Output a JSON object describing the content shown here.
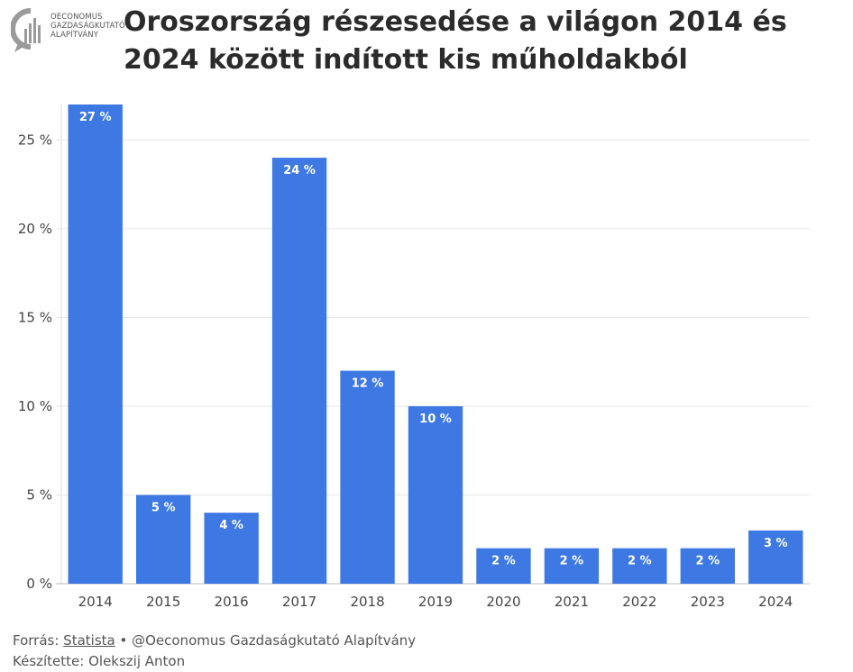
{
  "header": {
    "logo_lines": [
      "OECONOMUS",
      "GAZDASÁGKUTATÓ",
      "ALAPÍTVÁNY"
    ],
    "title_line1": "Oroszország részesedése a világon 2014 és",
    "title_line2": "2024 között indított kis műholdakból"
  },
  "chart_data": {
    "type": "bar",
    "title": "Oroszország részesedése a világon 2014 és 2024 között indított kis műholdakból",
    "xlabel": "",
    "ylabel": "",
    "categories": [
      "2014",
      "2015",
      "2016",
      "2017",
      "2018",
      "2019",
      "2020",
      "2021",
      "2022",
      "2023",
      "2024"
    ],
    "values": [
      27,
      5,
      4,
      24,
      12,
      10,
      2,
      2,
      2,
      2,
      3
    ],
    "data_labels": [
      "27 %",
      "5 %",
      "4 %",
      "24 %",
      "12 %",
      "10 %",
      "2 %",
      "2 %",
      "2 %",
      "2 %",
      "3 %"
    ],
    "yticks": [
      0,
      5,
      10,
      15,
      20,
      25
    ],
    "ytick_labels": [
      "0 %",
      "5 %",
      "10 %",
      "15 %",
      "20 %",
      "25 %"
    ],
    "ylim": [
      0,
      27
    ],
    "grid": true,
    "bar_color": "#3d78e3"
  },
  "footer": {
    "source_prefix": "Forrás: ",
    "source_link": "Statista",
    "source_suffix": " • @Oeconomus Gazdaságkutató Alapítvány",
    "author": "Készítette: Olekszij Anton"
  }
}
